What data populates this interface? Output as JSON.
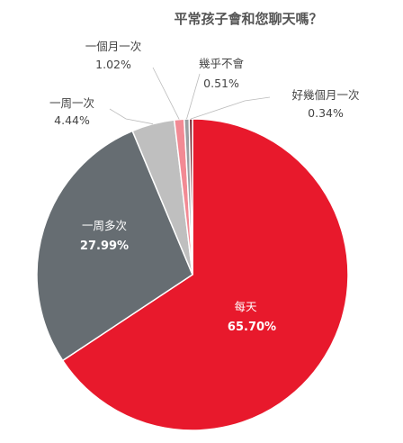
{
  "chart_data": {
    "type": "pie",
    "title": "平常孩子會和您聊天嗎？",
    "slices": [
      {
        "label": "每天",
        "value": 65.7,
        "display": "65.70%",
        "color": "#e8192c"
      },
      {
        "label": "一周多次",
        "value": 27.99,
        "display": "27.99%",
        "color": "#666d72"
      },
      {
        "label": "一周一次",
        "value": 4.44,
        "display": "4.44%",
        "color": "#bfbfbf"
      },
      {
        "label": "一個月一次",
        "value": 1.02,
        "display": "1.02%",
        "color": "#f28a94"
      },
      {
        "label": "幾乎不會",
        "value": 0.51,
        "display": "0.51%",
        "color": "#9a9fa2"
      },
      {
        "label": "好幾個月一次",
        "value": 0.34,
        "display": "0.34%",
        "color": "#7f2a33"
      }
    ]
  }
}
